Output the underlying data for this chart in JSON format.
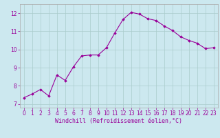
{
  "x": [
    0,
    1,
    2,
    3,
    4,
    5,
    6,
    7,
    8,
    9,
    10,
    11,
    12,
    13,
    14,
    15,
    16,
    17,
    18,
    19,
    20,
    21,
    22,
    23
  ],
  "y": [
    7.35,
    7.55,
    7.8,
    7.45,
    8.6,
    8.3,
    9.05,
    9.65,
    9.7,
    9.7,
    10.1,
    10.9,
    11.65,
    12.05,
    11.95,
    11.7,
    11.6,
    11.3,
    11.05,
    10.7,
    10.5,
    10.35,
    10.05,
    10.1
  ],
  "line_color": "#990099",
  "marker": "D",
  "markersize": 1.8,
  "linewidth": 0.8,
  "background_color": "#cce8ef",
  "grid_color": "#aacccc",
  "xlabel": "Windchill (Refroidissement éolien,°C)",
  "xlim": [
    -0.5,
    23.5
  ],
  "ylim": [
    6.8,
    12.5
  ],
  "yticks": [
    7,
    8,
    9,
    10,
    11,
    12
  ],
  "xticks": [
    0,
    1,
    2,
    3,
    4,
    5,
    6,
    7,
    8,
    9,
    10,
    11,
    12,
    13,
    14,
    15,
    16,
    17,
    18,
    19,
    20,
    21,
    22,
    23
  ],
  "tick_fontsize": 5.5,
  "xlabel_fontsize": 6.0,
  "tick_color": "#990099",
  "spine_color": "#aaaaaa"
}
